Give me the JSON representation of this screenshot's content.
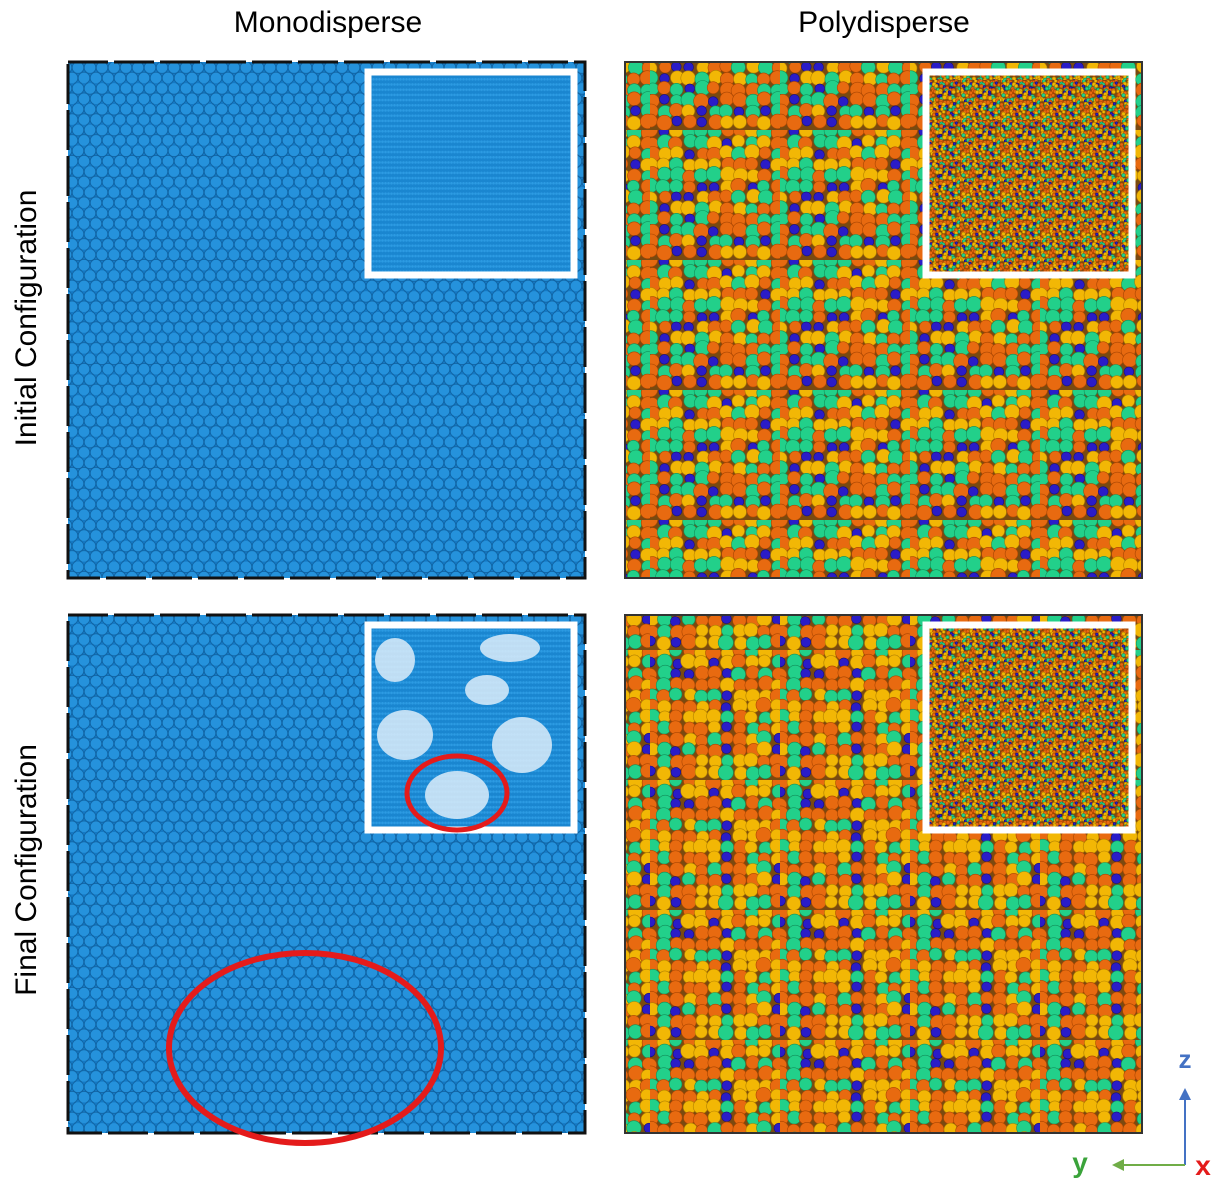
{
  "columns": [
    "Monodisperse",
    "Polydisperse"
  ],
  "rows": [
    "Initial Configuration",
    "Final Configuration"
  ],
  "axes": {
    "z": "z",
    "y": "y",
    "x": "x"
  }
}
